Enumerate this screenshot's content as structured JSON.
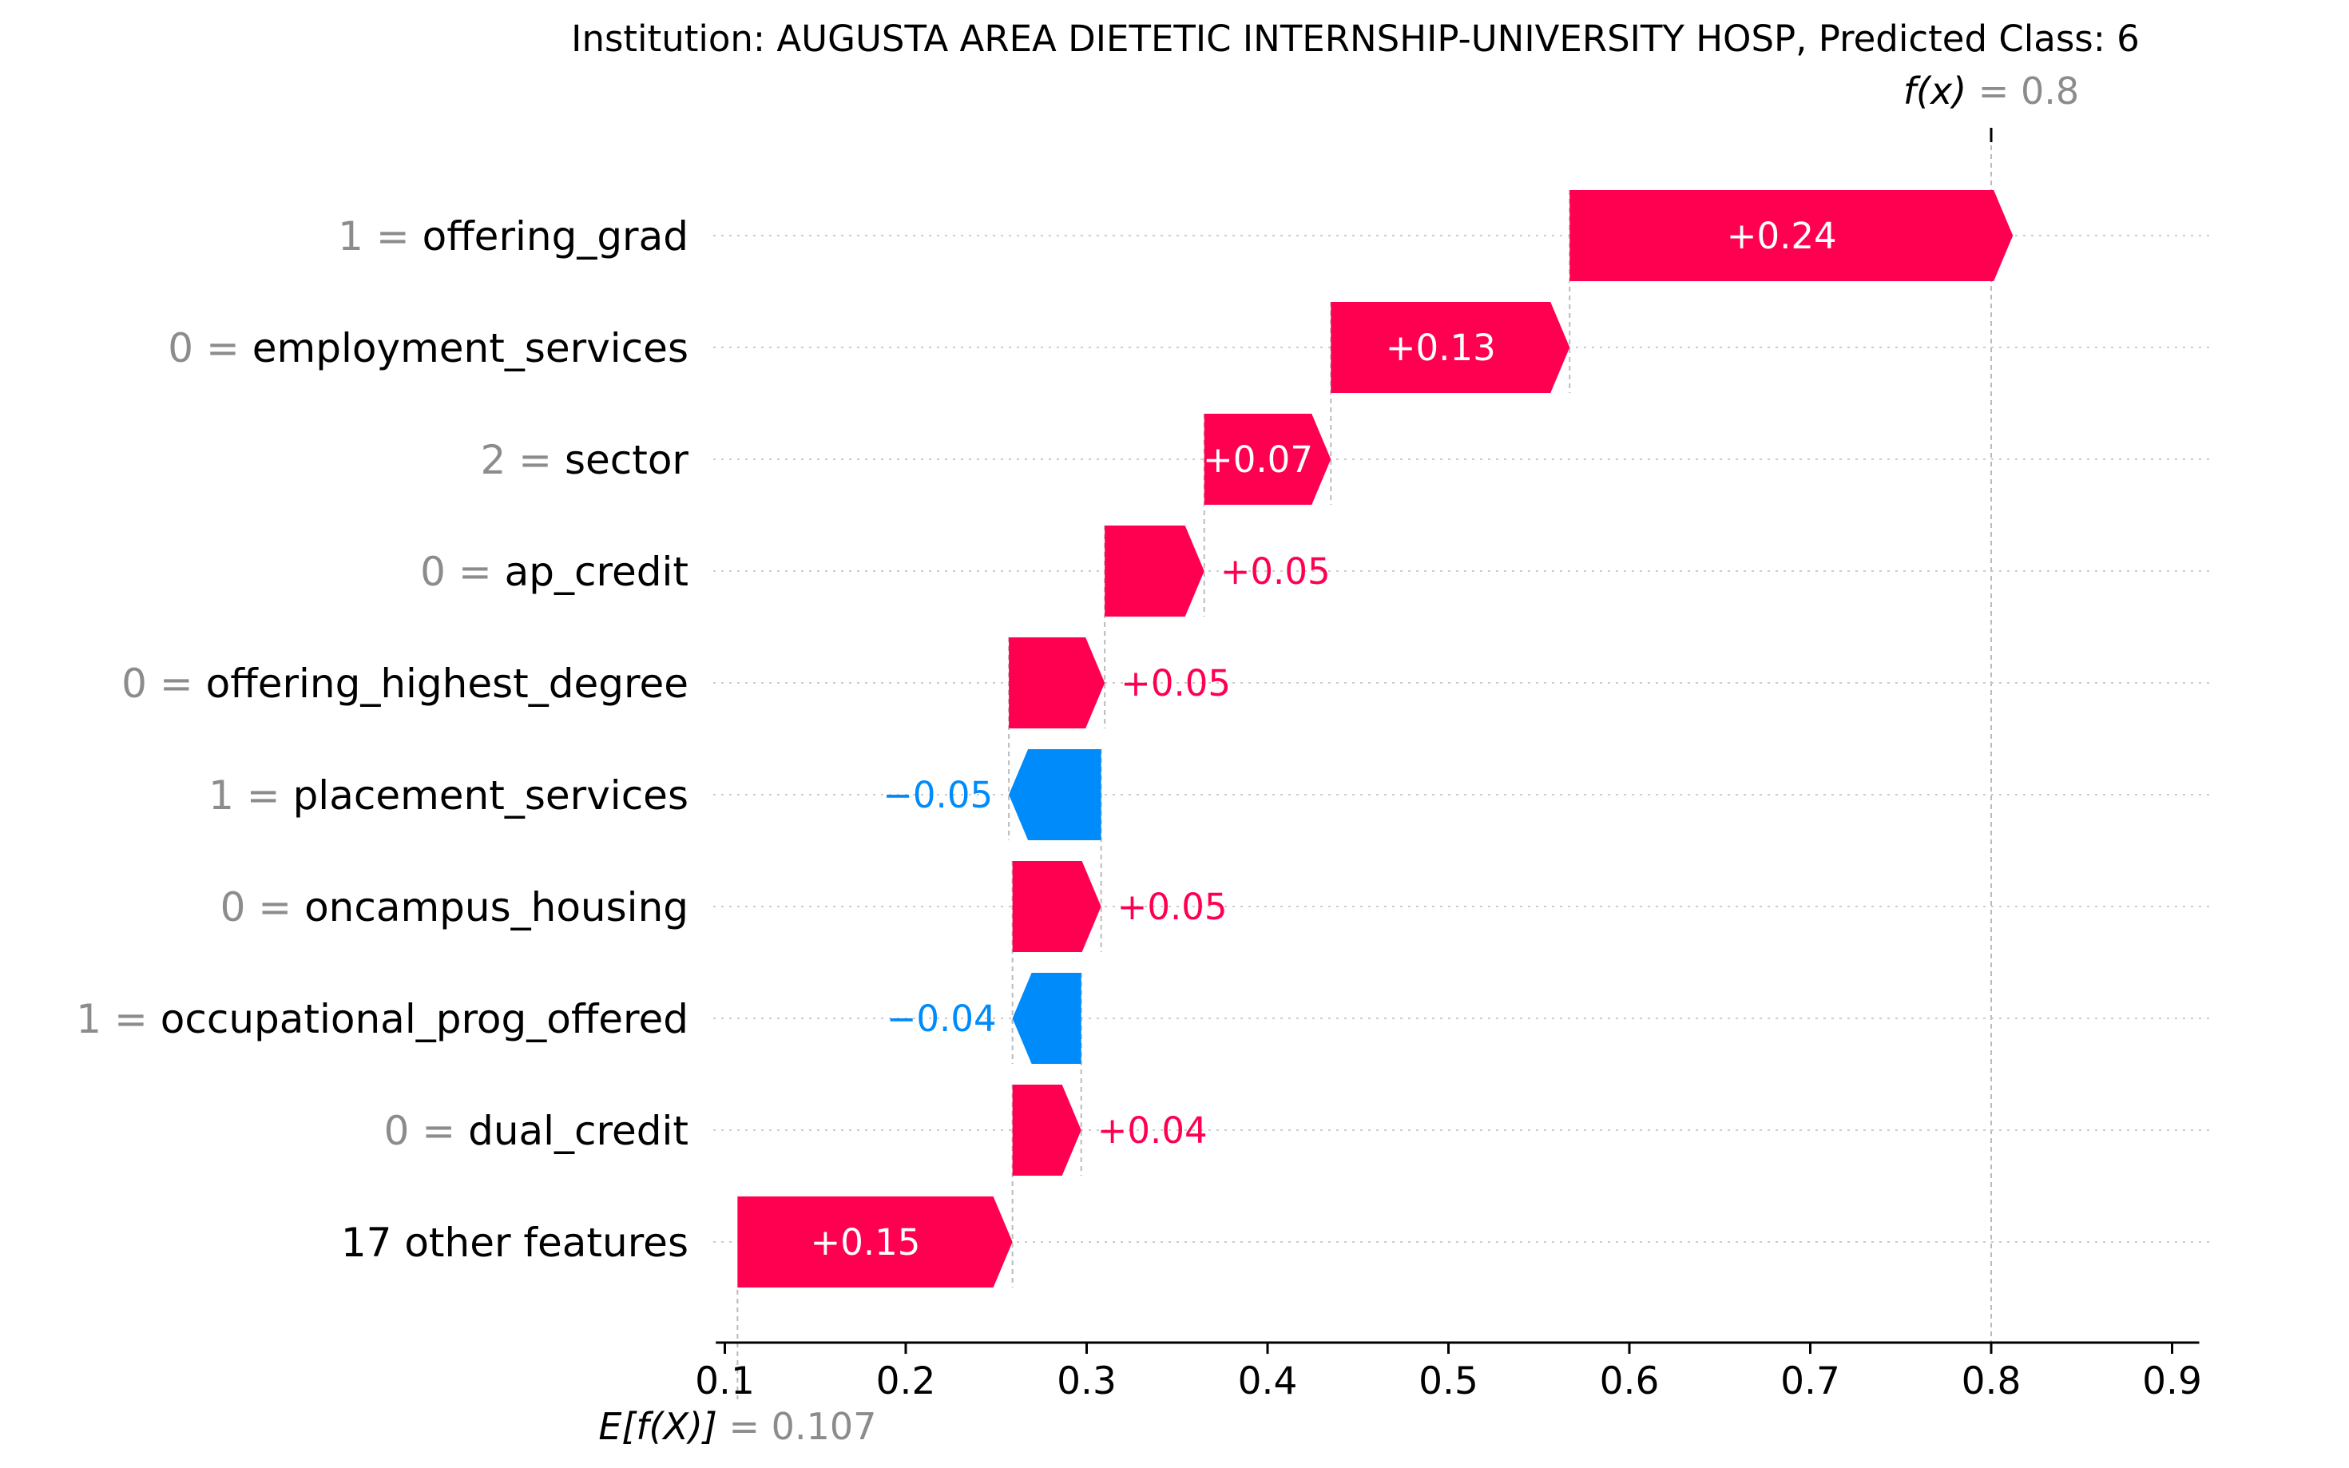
{
  "chart_data": {
    "type": "waterfall",
    "title": "Institution: AUGUSTA AREA DIETETIC INTERNSHIP-UNIVERSITY HOSP, Predicted Class: 6",
    "base_value": 0.107,
    "base_value_label": "= 0.107",
    "expected_label": "E[f(X)]",
    "final_value": 0.8,
    "final_value_label": "= 0.8",
    "fx_label": "f(x)",
    "xlim": [
      0.095,
      0.915
    ],
    "xticks": [
      0.1,
      0.2,
      0.3,
      0.4,
      0.5,
      0.6,
      0.7,
      0.8,
      0.9
    ],
    "xtick_labels": [
      "0.1",
      "0.2",
      "0.3",
      "0.4",
      "0.5",
      "0.6",
      "0.7",
      "0.8",
      "0.9"
    ],
    "colors": {
      "positive": "#ff0051",
      "negative": "#008bfb"
    },
    "features": [
      {
        "value": "1",
        "name": "offering_grad",
        "contribution": 0.245,
        "label": "+0.24"
      },
      {
        "value": "0",
        "name": "employment_services",
        "contribution": 0.132,
        "label": "+0.13"
      },
      {
        "value": "2",
        "name": "sector",
        "contribution": 0.07,
        "label": "+0.07"
      },
      {
        "value": "0",
        "name": "ap_credit",
        "contribution": 0.055,
        "label": "+0.05"
      },
      {
        "value": "0",
        "name": "offering_highest_degree",
        "contribution": 0.053,
        "label": "+0.05"
      },
      {
        "value": "1",
        "name": "placement_services",
        "contribution": -0.051,
        "label": "−0.05"
      },
      {
        "value": "0",
        "name": "oncampus_housing",
        "contribution": 0.049,
        "label": "+0.05"
      },
      {
        "value": "1",
        "name": "occupational_prog_offered",
        "contribution": -0.038,
        "label": "−0.04"
      },
      {
        "value": "0",
        "name": "dual_credit",
        "contribution": 0.038,
        "label": "+0.04"
      },
      {
        "value": "",
        "name": "17 other features",
        "contribution": 0.152,
        "label": "+0.15"
      }
    ]
  }
}
